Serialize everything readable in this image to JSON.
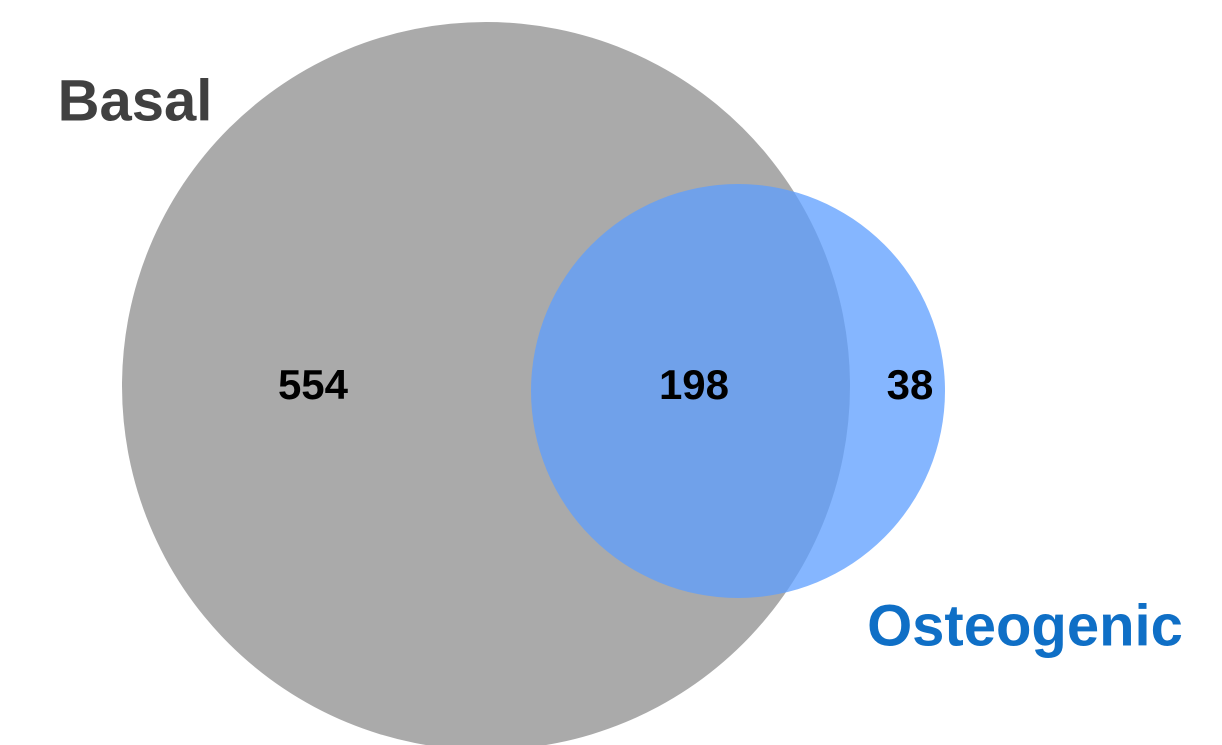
{
  "chart_data": {
    "type": "venn",
    "sets": [
      {
        "name": "Basal",
        "color": "#aaaaaa",
        "label_color": "#404040"
      },
      {
        "name": "Osteogenic",
        "color": "#5c9dff",
        "label_color": "#0f6fc6"
      }
    ],
    "values": [
      554,
      198,
      38
    ]
  }
}
